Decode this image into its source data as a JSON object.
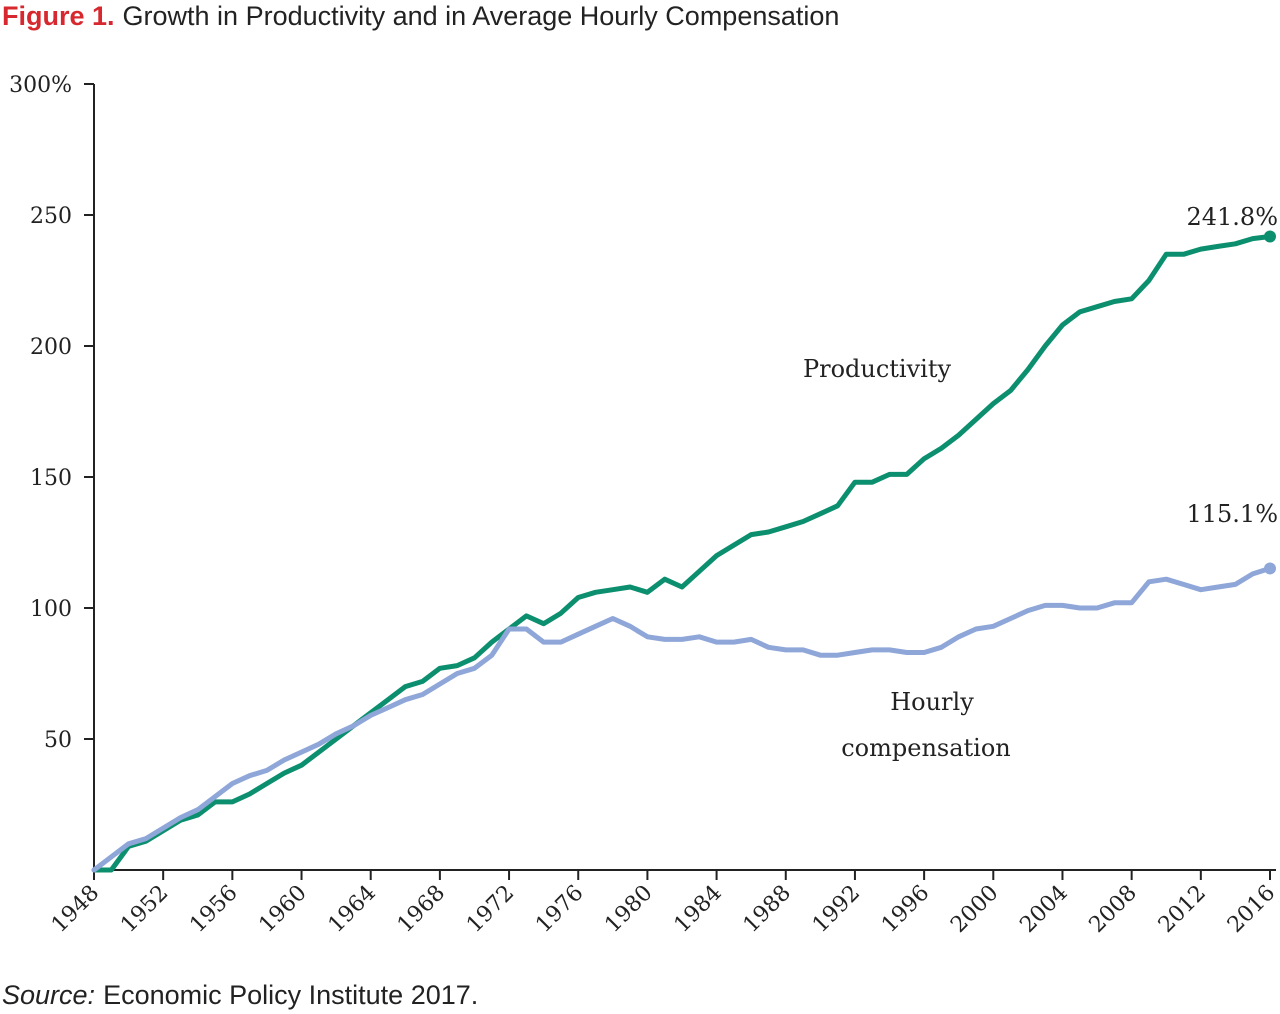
{
  "figure": {
    "number": "Figure 1.",
    "title": "Growth in Productivity and in Average Hourly Compensation"
  },
  "source": {
    "label": "Source:",
    "text": "Economic Policy Institute 2017."
  },
  "colors": {
    "productivity": "#0c8f6e",
    "compensation": "#8ea6d8",
    "title_accent": "#d6282e"
  },
  "chart_data": {
    "type": "line",
    "title": "Growth in Productivity and in Average Hourly Compensation",
    "xlabel": "",
    "ylabel": "",
    "xlim": [
      1948,
      2016
    ],
    "ylim": [
      0,
      300
    ],
    "y_ticks": [
      {
        "value": 50,
        "label": "50"
      },
      {
        "value": 100,
        "label": "100"
      },
      {
        "value": 150,
        "label": "150"
      },
      {
        "value": 200,
        "label": "200"
      },
      {
        "value": 250,
        "label": "250"
      },
      {
        "value": 300,
        "label": "300%"
      }
    ],
    "x_ticks": [
      "1948",
      "1952",
      "1956",
      "1960",
      "1964",
      "1968",
      "1972",
      "1976",
      "1980",
      "1984",
      "1988",
      "1992",
      "1996",
      "2000",
      "2004",
      "2008",
      "2012",
      "2016"
    ],
    "grid": false,
    "x": [
      1948,
      1949,
      1950,
      1951,
      1952,
      1953,
      1954,
      1955,
      1956,
      1957,
      1958,
      1959,
      1960,
      1961,
      1962,
      1963,
      1964,
      1965,
      1966,
      1967,
      1968,
      1969,
      1970,
      1971,
      1972,
      1973,
      1974,
      1975,
      1976,
      1977,
      1978,
      1979,
      1980,
      1981,
      1982,
      1983,
      1984,
      1985,
      1986,
      1987,
      1988,
      1989,
      1990,
      1991,
      1992,
      1993,
      1994,
      1995,
      1996,
      1997,
      1998,
      1999,
      2000,
      2001,
      2002,
      2003,
      2004,
      2005,
      2006,
      2007,
      2008,
      2009,
      2010,
      2011,
      2012,
      2013,
      2014,
      2015,
      2016
    ],
    "series": [
      {
        "name": "Productivity",
        "color": "#0c8f6e",
        "end_label": "241.8%",
        "values": [
          0,
          0,
          9,
          11,
          15,
          19,
          21,
          26,
          26,
          29,
          33,
          37,
          40,
          45,
          50,
          55,
          60,
          65,
          70,
          72,
          77,
          78,
          81,
          87,
          92,
          97,
          94,
          98,
          104,
          106,
          107,
          108,
          106,
          111,
          108,
          114,
          120,
          124,
          128,
          129,
          131,
          133,
          136,
          139,
          148,
          148,
          151,
          151,
          157,
          161,
          166,
          172,
          178,
          183,
          191,
          200,
          208,
          213,
          215,
          217,
          218,
          225,
          235,
          235,
          237,
          238,
          239,
          241,
          241.8
        ]
      },
      {
        "name": "Hourly compensation",
        "color": "#8ea6d8",
        "end_label": "115.1%",
        "values": [
          0,
          5,
          10,
          12,
          16,
          20,
          23,
          28,
          33,
          36,
          38,
          42,
          45,
          48,
          52,
          55,
          59,
          62,
          65,
          67,
          71,
          75,
          77,
          82,
          92,
          92,
          87,
          87,
          90,
          93,
          96,
          93,
          89,
          88,
          88,
          89,
          87,
          87,
          88,
          85,
          84,
          84,
          82,
          82,
          83,
          84,
          84,
          83,
          83,
          85,
          89,
          92,
          93,
          96,
          99,
          101,
          101,
          100,
          100,
          102,
          102,
          110,
          111,
          109,
          107,
          108,
          109,
          113,
          115.1
        ]
      }
    ]
  }
}
